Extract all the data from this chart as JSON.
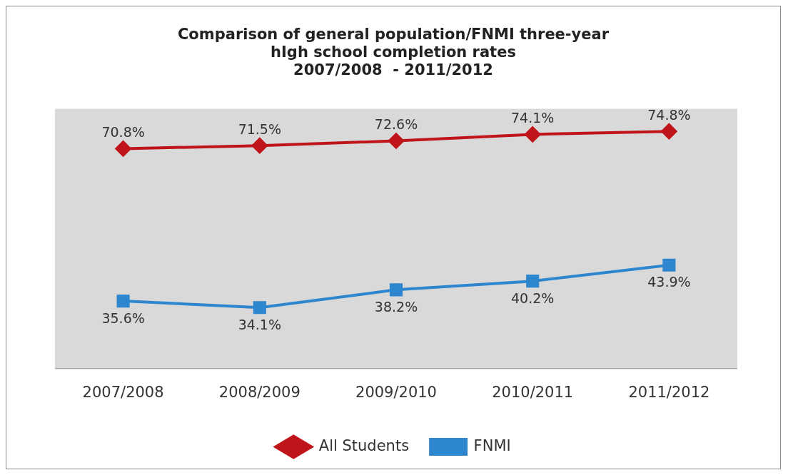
{
  "chart_data": {
    "type": "line",
    "title": "Comparison of general population/FNMI three-year\nhIgh school completion rates\n2007/2008  - 2011/2012",
    "categories": [
      "2007/2008",
      "2008/2009",
      "2009/2010",
      "2010/2011",
      "2011/2012"
    ],
    "series": [
      {
        "name": "All Students",
        "color": "#c0141b",
        "marker": "diamond",
        "values": [
          70.8,
          71.5,
          72.6,
          74.1,
          74.8
        ],
        "value_labels": [
          "70.8%",
          "71.5%",
          "72.6%",
          "74.1%",
          "74.8%"
        ]
      },
      {
        "name": "FNMI",
        "color": "#2e86cf",
        "marker": "square",
        "values": [
          35.6,
          34.1,
          38.2,
          40.2,
          43.9
        ],
        "value_labels": [
          "35.6%",
          "34.1%",
          "38.2%",
          "40.2%",
          "43.9%"
        ]
      }
    ],
    "grid": false,
    "legend": "bottom",
    "line_style": "solid"
  }
}
